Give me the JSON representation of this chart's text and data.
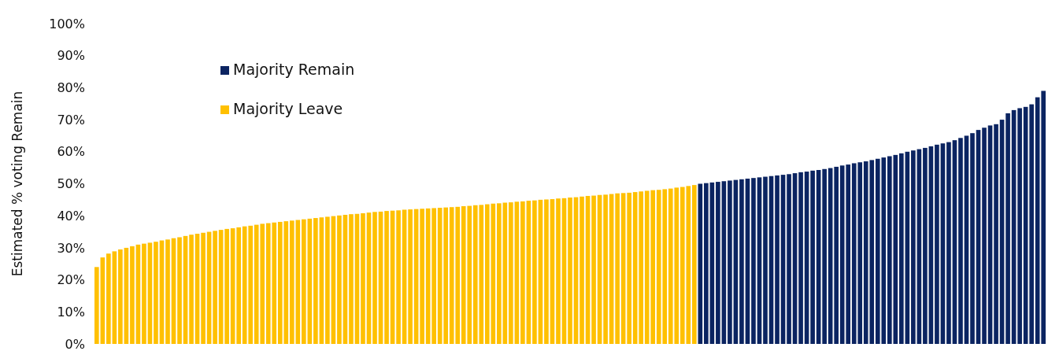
{
  "chart_data": {
    "type": "bar",
    "ylabel": "Estimated % voting Remain",
    "stacked": true,
    "categories": [
      null,
      null,
      null,
      null,
      null,
      null,
      null,
      null,
      null,
      null,
      null,
      null,
      null,
      null,
      null,
      null,
      null,
      null,
      null,
      null,
      null,
      null,
      null,
      null,
      null,
      null,
      null,
      null,
      null,
      null,
      null,
      null,
      null,
      null,
      null,
      null,
      null,
      null,
      null,
      null,
      null,
      null,
      null,
      null,
      null,
      null,
      null,
      null,
      null,
      null,
      null,
      null,
      null,
      null,
      null,
      null,
      null,
      null,
      null,
      null,
      null,
      null,
      null,
      null,
      null,
      null,
      null,
      null,
      null,
      null,
      null,
      null,
      null,
      null,
      null,
      null,
      null,
      null,
      null,
      null,
      null,
      null,
      null,
      null,
      null,
      null,
      null,
      null,
      null,
      null,
      null,
      null,
      null,
      null,
      null,
      null,
      null,
      null,
      null,
      null,
      null,
      null,
      null,
      null,
      null,
      null,
      null,
      null,
      null,
      null,
      null,
      null,
      null,
      null,
      null,
      null,
      null,
      null,
      null,
      null,
      null,
      null,
      null,
      null,
      null,
      null,
      null,
      null,
      null,
      null,
      null,
      null,
      null,
      null,
      null,
      null,
      null,
      null,
      null,
      null,
      null,
      null,
      null,
      null,
      null,
      null,
      null,
      null,
      null,
      null,
      null,
      null,
      null,
      null,
      null,
      null,
      null,
      null,
      null,
      null,
      null
    ],
    "series": [
      {
        "name": "Majority Remain",
        "color": "#0b2461",
        "values": [
          0,
          0,
          0,
          0,
          0,
          0,
          0,
          0,
          0,
          0,
          0,
          0,
          0,
          0,
          0,
          0,
          0,
          0,
          0,
          0,
          0,
          0,
          0,
          0,
          0,
          0,
          0,
          0,
          0,
          0,
          0,
          0,
          0,
          0,
          0,
          0,
          0,
          0,
          0,
          0,
          0,
          0,
          0,
          0,
          0,
          0,
          0,
          0,
          0,
          0,
          0,
          0,
          0,
          0,
          0,
          0,
          0,
          0,
          0,
          0,
          0,
          0,
          0,
          0,
          0,
          0,
          0,
          0,
          0,
          0,
          0,
          0,
          0,
          0,
          0,
          0,
          0,
          0,
          0,
          0,
          0,
          0,
          0,
          0,
          0,
          0,
          0,
          0,
          0,
          0,
          0,
          0,
          0,
          0,
          0,
          0,
          0,
          0,
          0,
          0,
          0,
          0,
          50.0,
          50.2,
          50.4,
          50.6,
          50.8,
          51.0,
          51.2,
          51.4,
          51.6,
          51.8,
          52.0,
          52.2,
          52.4,
          52.6,
          52.8,
          53.0,
          53.3,
          53.6,
          53.8,
          54.1,
          54.3,
          54.6,
          54.9,
          55.3,
          55.7,
          56.0,
          56.4,
          56.7,
          57.0,
          57.4,
          57.8,
          58.2,
          58.6,
          59.0,
          59.5,
          60.0,
          60.4,
          60.8,
          61.2,
          61.7,
          62.2,
          62.6,
          63.0,
          63.6,
          64.3,
          65.0,
          65.8,
          66.8,
          67.5,
          68.2,
          68.6,
          70.0,
          72.0,
          73.0,
          73.6,
          74.0,
          74.8,
          77.0,
          79.0
        ]
      },
      {
        "name": "Majority Leave",
        "color": "#ffc000",
        "values": [
          24.0,
          27.0,
          28.2,
          28.9,
          29.5,
          30.0,
          30.5,
          31.0,
          31.3,
          31.6,
          31.9,
          32.3,
          32.6,
          33.0,
          33.3,
          33.7,
          34.1,
          34.4,
          34.7,
          35.0,
          35.3,
          35.6,
          35.9,
          36.1,
          36.4,
          36.7,
          36.9,
          37.2,
          37.5,
          37.7,
          37.9,
          38.1,
          38.3,
          38.5,
          38.7,
          38.9,
          39.1,
          39.3,
          39.5,
          39.7,
          39.9,
          40.1,
          40.3,
          40.5,
          40.6,
          40.8,
          41.0,
          41.2,
          41.3,
          41.5,
          41.6,
          41.7,
          41.9,
          42.0,
          42.1,
          42.2,
          42.3,
          42.4,
          42.5,
          42.6,
          42.7,
          42.8,
          43.0,
          43.1,
          43.3,
          43.4,
          43.6,
          43.8,
          43.9,
          44.1,
          44.2,
          44.4,
          44.5,
          44.7,
          44.8,
          45.0,
          45.1,
          45.2,
          45.4,
          45.5,
          45.7,
          45.8,
          46.0,
          46.2,
          46.3,
          46.5,
          46.6,
          46.8,
          47.0,
          47.1,
          47.2,
          47.4,
          47.6,
          47.8,
          48.0,
          48.1,
          48.3,
          48.5,
          48.8,
          49.0,
          49.3,
          49.6,
          0,
          0,
          0,
          0,
          0,
          0,
          0,
          0,
          0,
          0,
          0,
          0,
          0,
          0,
          0,
          0,
          0,
          0,
          0,
          0,
          0,
          0,
          0,
          0,
          0,
          0,
          0,
          0,
          0,
          0,
          0,
          0,
          0,
          0,
          0,
          0,
          0,
          0,
          0,
          0,
          0,
          0,
          0,
          0,
          0,
          0,
          0,
          0,
          0,
          0,
          0,
          0,
          0,
          0,
          0,
          0,
          0,
          0,
          0
        ]
      }
    ],
    "ylim": [
      0,
      100
    ],
    "yticks": [
      {
        "value": 0,
        "label": "0%"
      },
      {
        "value": 10,
        "label": "10%"
      },
      {
        "value": 20,
        "label": "20%"
      },
      {
        "value": 30,
        "label": "30%"
      },
      {
        "value": 40,
        "label": "40%"
      },
      {
        "value": 50,
        "label": "50%"
      },
      {
        "value": 60,
        "label": "60%"
      },
      {
        "value": 70,
        "label": "70%"
      },
      {
        "value": 80,
        "label": "80%"
      },
      {
        "value": 90,
        "label": "90%"
      },
      {
        "value": 100,
        "label": "100%"
      }
    ],
    "legend": "top left"
  }
}
